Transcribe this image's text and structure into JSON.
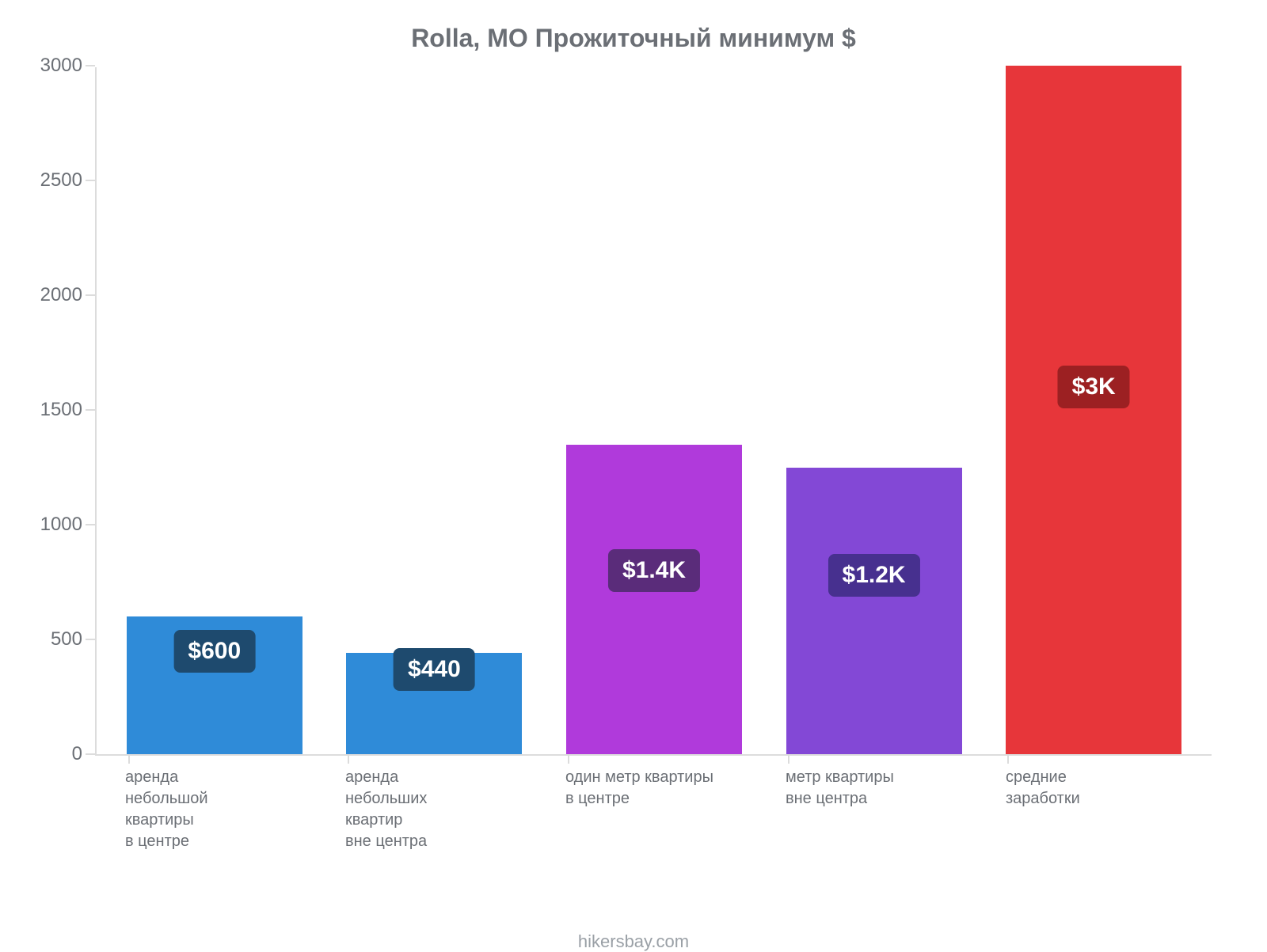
{
  "chart": {
    "type": "bar",
    "title": "Rolla, MO Прожиточный минимум $",
    "title_color": "#6b6f75",
    "title_fontsize": 32,
    "background_color": "#ffffff",
    "axis_color": "#dcdcdc",
    "label_color": "#6b6f75",
    "label_fontsize": 24,
    "xlabel_fontsize": 20,
    "ylim_min": 0,
    "ylim_max": 3000,
    "ytick_step": 500,
    "yticks": [
      0,
      500,
      1000,
      1500,
      2000,
      2500,
      3000
    ],
    "bar_width_pct": 80,
    "bars": [
      {
        "category": "аренда\nнебольшой\nквартиры\nв центре",
        "value": 600,
        "value_label": "$600",
        "bar_color": "#2f8bd8",
        "badge_bg": "#1e4a6e",
        "badge_top_value": 450
      },
      {
        "category": "аренда\nнебольших\nквартир\nвне центра",
        "value": 440,
        "value_label": "$440",
        "bar_color": "#2f8bd8",
        "badge_bg": "#1e4a6e",
        "badge_top_value": 370
      },
      {
        "category": "один метр квартиры\nв центре",
        "value": 1350,
        "value_label": "$1.4K",
        "bar_color": "#b03adb",
        "badge_bg": "#5a2c7a",
        "badge_top_value": 800
      },
      {
        "category": "метр квартиры\nвне центра",
        "value": 1250,
        "value_label": "$1.2K",
        "bar_color": "#8348d6",
        "badge_bg": "#47308f",
        "badge_top_value": 780
      },
      {
        "category": "средние\nзаработки",
        "value": 3000,
        "value_label": "$3K",
        "bar_color": "#e7363a",
        "badge_bg": "#9c2022",
        "badge_top_value": 1600
      }
    ],
    "footer": "hikersbay.com",
    "footer_color": "#9aa0a6",
    "footer_fontsize": 22
  }
}
